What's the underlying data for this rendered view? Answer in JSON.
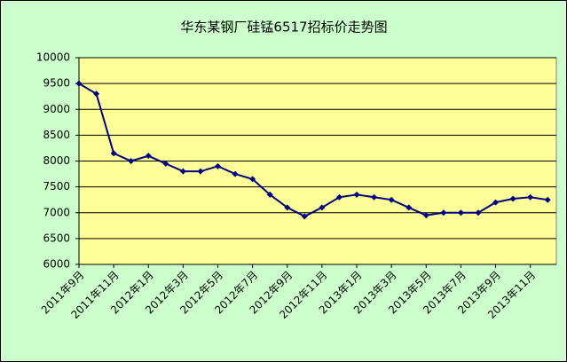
{
  "chart_data": {
    "type": "line",
    "title": "华东某钢厂硅锰6517招标价走势图",
    "categories": [
      "2011年9月",
      null,
      "2011年11月",
      null,
      "2012年1月",
      null,
      "2012年3月",
      null,
      "2012年5月",
      null,
      "2012年7月",
      null,
      "2012年9月",
      null,
      "2012年11月",
      null,
      "2013年1月",
      null,
      "2013年3月",
      null,
      "2013年5月",
      null,
      "2013年7月",
      null,
      "2013年9月",
      null,
      "2013年11月",
      null
    ],
    "series": [
      {
        "color": "#000080",
        "values": [
          9500,
          9300,
          8150,
          8000,
          8100,
          7950,
          7800,
          7800,
          7900,
          7750,
          7650,
          7350,
          7100,
          6930,
          7100,
          7300,
          7350,
          7300,
          7250,
          7100,
          6950,
          7000,
          7000,
          7000,
          7200,
          7270,
          7300,
          7250
        ]
      }
    ],
    "ylim": [
      6000,
      10000
    ],
    "yticks": [
      6000,
      6500,
      7000,
      7500,
      8000,
      8500,
      9000,
      9500,
      10000
    ],
    "grid": true
  }
}
